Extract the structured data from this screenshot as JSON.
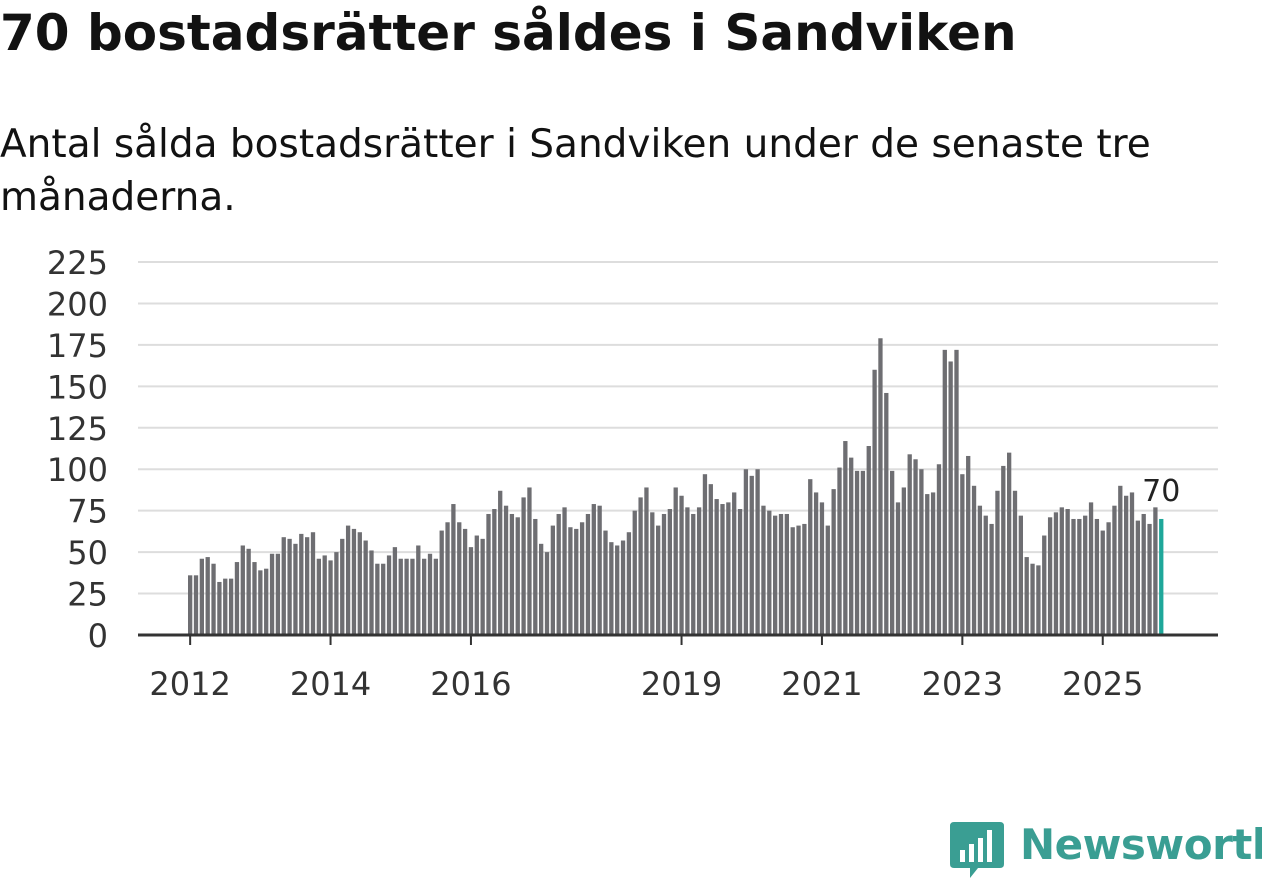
{
  "title": "70 bostadsrätter såldes i Sandviken",
  "subtitle": "Antal sålda bostadsrätter i Sandviken under de senaste tre månaderna.",
  "brand": {
    "name": "Newsworthy",
    "color": "#3a9e93",
    "icon": "newsworthy-logo-icon"
  },
  "colors": {
    "bar": "#6e6e72",
    "highlight": "#1fa79a",
    "grid": "#dddddd",
    "axis": "#333333",
    "text": "#333333"
  },
  "chart_data": {
    "type": "bar",
    "title": "70 bostadsrätter såldes i Sandviken",
    "xlabel": "",
    "ylabel": "",
    "ylim": [
      0,
      225
    ],
    "yticks": [
      0,
      25,
      50,
      75,
      100,
      125,
      150,
      175,
      200,
      225
    ],
    "start_year": 2012,
    "start_month": 1,
    "xticks": [
      {
        "label": "2012",
        "index": 0
      },
      {
        "label": "2014",
        "index": 24
      },
      {
        "label": "2016",
        "index": 48
      },
      {
        "label": "2019",
        "index": 84
      },
      {
        "label": "2021",
        "index": 108
      },
      {
        "label": "2023",
        "index": 132
      },
      {
        "label": "2025",
        "index": 156
      }
    ],
    "values": [
      36,
      36,
      46,
      47,
      43,
      32,
      34,
      34,
      44,
      54,
      52,
      44,
      39,
      40,
      49,
      49,
      59,
      58,
      55,
      61,
      59,
      62,
      46,
      48,
      45,
      50,
      58,
      66,
      64,
      62,
      57,
      51,
      43,
      43,
      48,
      53,
      46,
      46,
      46,
      54,
      46,
      49,
      46,
      63,
      68,
      79,
      68,
      64,
      53,
      60,
      58,
      73,
      76,
      87,
      78,
      73,
      71,
      83,
      89,
      70,
      55,
      50,
      66,
      73,
      77,
      65,
      64,
      68,
      73,
      79,
      78,
      63,
      56,
      54,
      57,
      62,
      75,
      83,
      89,
      74,
      66,
      73,
      76,
      89,
      84,
      77,
      73,
      77,
      97,
      91,
      82,
      79,
      80,
      86,
      76,
      100,
      96,
      100,
      78,
      75,
      72,
      73,
      73,
      65,
      66,
      67,
      94,
      86,
      80,
      66,
      88,
      101,
      117,
      107,
      99,
      99,
      114,
      160,
      179,
      146,
      99,
      80,
      89,
      109,
      106,
      100,
      85,
      86,
      103,
      172,
      165,
      172,
      97,
      108,
      90,
      78,
      72,
      67,
      87,
      102,
      110,
      87,
      72,
      47,
      43,
      42,
      60,
      71,
      74,
      77,
      76,
      70,
      70,
      72,
      80,
      70,
      63,
      68,
      78,
      90,
      84,
      86,
      69,
      73,
      67,
      77,
      70
    ],
    "highlight_last": true,
    "last_label": "70"
  }
}
